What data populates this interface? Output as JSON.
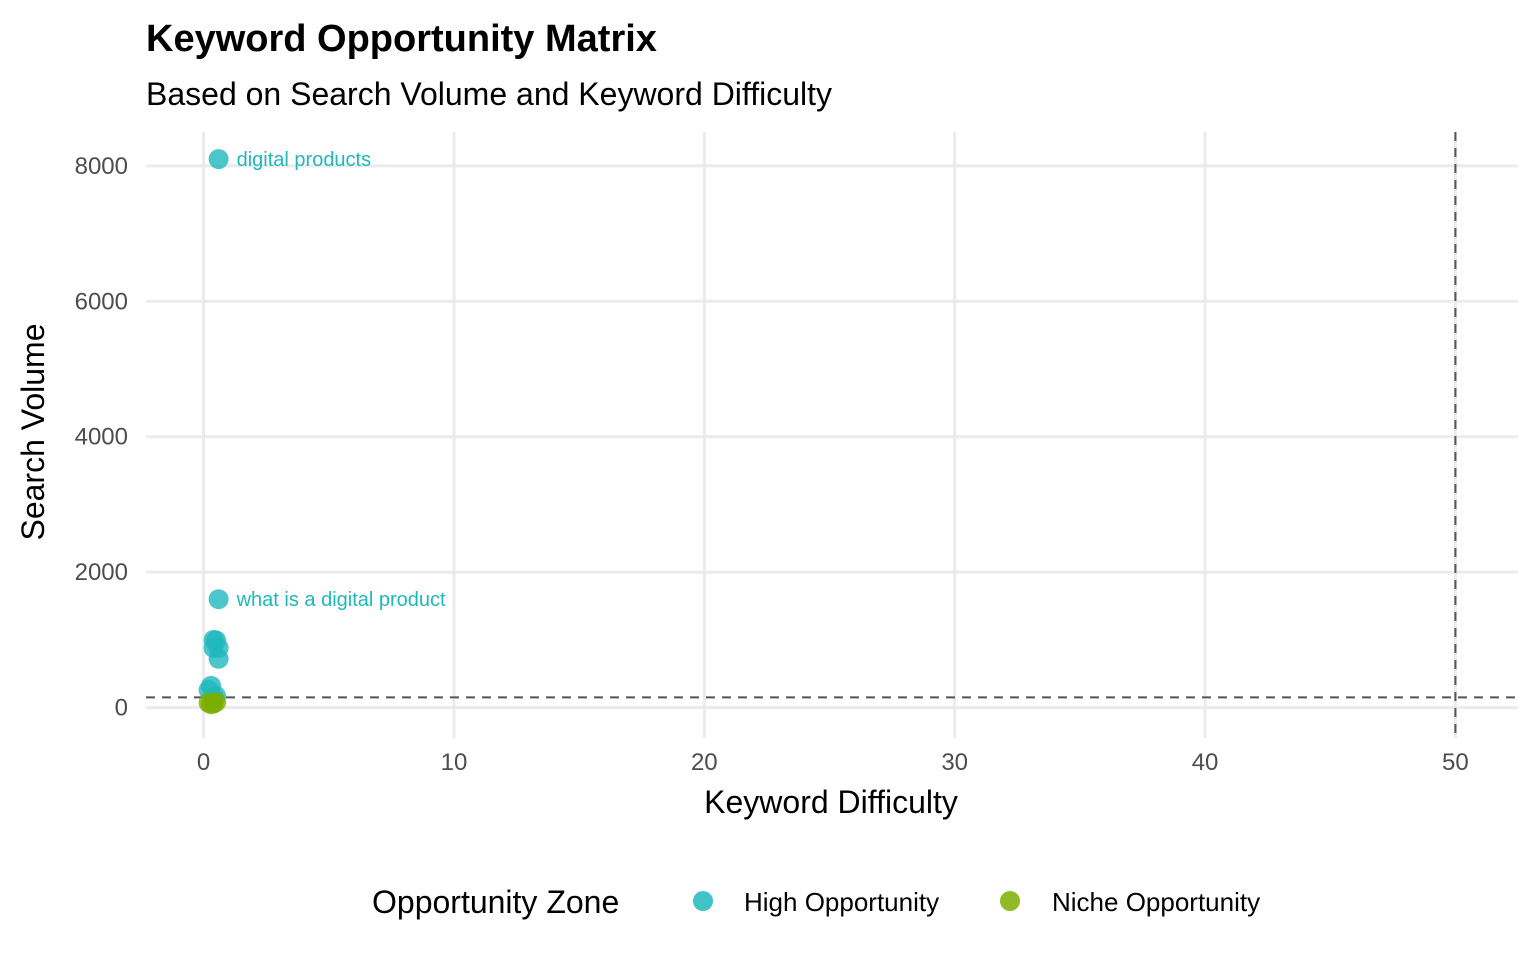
{
  "chart_data": {
    "type": "scatter",
    "title": "Keyword Opportunity Matrix",
    "subtitle": "Based on Search Volume and Keyword Difficulty",
    "xlabel": "Keyword Difficulty",
    "ylabel": "Search Volume",
    "xlim": [
      -2.3,
      52.5
    ],
    "ylim": [
      -450,
      8500
    ],
    "x_ticks": [
      0,
      10,
      20,
      30,
      40,
      50
    ],
    "y_ticks": [
      0,
      2000,
      4000,
      6000,
      8000
    ],
    "grid": true,
    "reference_lines": {
      "x": 50,
      "y": 150
    },
    "legend": {
      "title": "Opportunity Zone",
      "placement": "bottom",
      "entries": [
        "High Opportunity",
        "Niche Opportunity"
      ]
    },
    "colors": {
      "High Opportunity": "#1fb8bd",
      "Niche Opportunity": "#7cae00"
    },
    "series": [
      {
        "name": "High Opportunity",
        "points": [
          {
            "x": 0.6,
            "y": 8100,
            "label": "digital products"
          },
          {
            "x": 0.6,
            "y": 1600,
            "label": "what is a digital product"
          },
          {
            "x": 0.4,
            "y": 1000
          },
          {
            "x": 0.5,
            "y": 990
          },
          {
            "x": 0.4,
            "y": 880
          },
          {
            "x": 0.6,
            "y": 880
          },
          {
            "x": 0.6,
            "y": 720
          },
          {
            "x": 0.3,
            "y": 320
          },
          {
            "x": 0.2,
            "y": 260
          },
          {
            "x": 0.5,
            "y": 170
          },
          {
            "x": 0.4,
            "y": 150
          }
        ]
      },
      {
        "name": "Niche Opportunity",
        "points": [
          {
            "x": 0.2,
            "y": 70
          },
          {
            "x": 0.3,
            "y": 50
          },
          {
            "x": 0.4,
            "y": 60
          },
          {
            "x": 0.5,
            "y": 80
          }
        ]
      }
    ]
  }
}
